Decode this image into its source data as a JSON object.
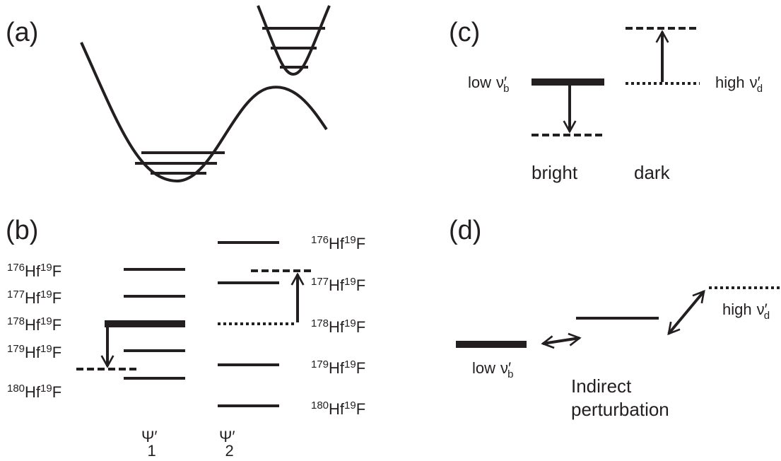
{
  "panels": {
    "a": "(a)",
    "b": "(b)",
    "c": "(c)",
    "d": "(d)"
  },
  "panel_b": {
    "left_labels": [
      {
        "hf_mass": "176",
        "hf": "Hf",
        "f_mass": "19",
        "f": "F"
      },
      {
        "hf_mass": "177",
        "hf": "Hf",
        "f_mass": "19",
        "f": "F"
      },
      {
        "hf_mass": "178",
        "hf": "Hf",
        "f_mass": "19",
        "f": "F"
      },
      {
        "hf_mass": "179",
        "hf": "Hf",
        "f_mass": "19",
        "f": "F"
      },
      {
        "hf_mass": "180",
        "hf": "Hf",
        "f_mass": "19",
        "f": "F"
      }
    ],
    "right_labels": [
      {
        "hf_mass": "176",
        "hf": "Hf",
        "f_mass": "19",
        "f": "F"
      },
      {
        "hf_mass": "177",
        "hf": "Hf",
        "f_mass": "19",
        "f": "F"
      },
      {
        "hf_mass": "178",
        "hf": "Hf",
        "f_mass": "19",
        "f": "F"
      },
      {
        "hf_mass": "179",
        "hf": "Hf",
        "f_mass": "19",
        "f": "F"
      },
      {
        "hf_mass": "180",
        "hf": "Hf",
        "f_mass": "19",
        "f": "F"
      }
    ],
    "states": [
      {
        "symbol": "Ψ′",
        "subscript": "1"
      },
      {
        "symbol": "Ψ′",
        "subscript": "2"
      }
    ]
  },
  "panel_c": {
    "bright_level": {
      "prefix": "low",
      "symbol": "ν′",
      "subscript": "b"
    },
    "dark_level": {
      "prefix": "high",
      "symbol": "ν′",
      "subscript": "d"
    },
    "bright": "bright",
    "dark": "dark"
  },
  "panel_d": {
    "bright_level": {
      "prefix": "low",
      "symbol": "ν′",
      "subscript": "b"
    },
    "dark_level": {
      "prefix": "high",
      "symbol": "ν′",
      "subscript": "d"
    },
    "caption": [
      "Indirect",
      "perturbation"
    ]
  }
}
